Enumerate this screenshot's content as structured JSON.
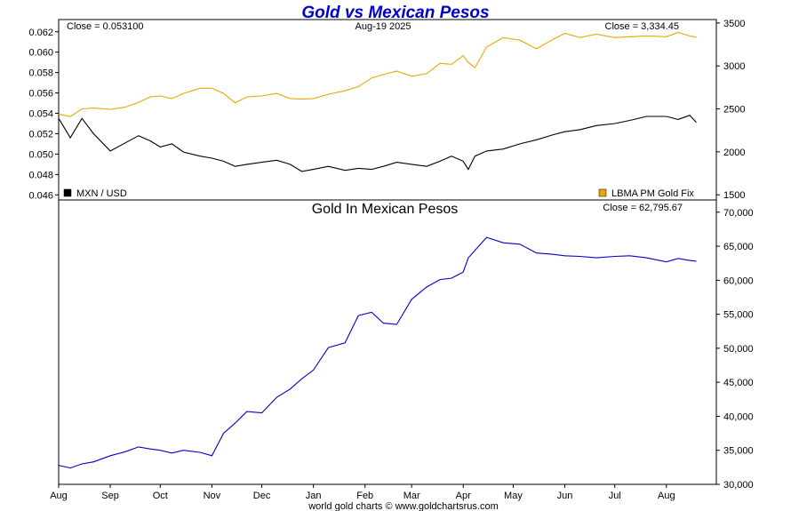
{
  "title": "Gold vs Mexican Pesos",
  "footer": "world gold charts © www.goldchartsrus.com",
  "colors": {
    "mxn": "#000000",
    "gold_usd": "#e8a800",
    "gold_mxn": "#0000cc",
    "title": "#0000cc"
  },
  "x_axis": {
    "type": "date",
    "range": [
      "2024-08-01",
      "2025-08-31"
    ],
    "tick_labels": [
      "Aug",
      "Sep",
      "Oct",
      "Nov",
      "Dec",
      "Jan",
      "Feb",
      "Mar",
      "Apr",
      "May",
      "Jun",
      "Jul",
      "Aug"
    ],
    "tick_dates": [
      "2024-08-01",
      "2024-09-01",
      "2024-10-01",
      "2024-11-01",
      "2024-12-01",
      "2025-01-01",
      "2025-02-01",
      "2025-03-01",
      "2025-04-01",
      "2025-05-01",
      "2025-06-01",
      "2025-07-01",
      "2025-08-01"
    ]
  },
  "chart_data": [
    {
      "type": "line",
      "panel": "top",
      "date_label": "Aug-19  2025",
      "grid": false,
      "left_axis": {
        "range": [
          0.0455,
          0.0632
        ],
        "ticks": [
          "0.046",
          "0.048",
          "0.050",
          "0.052",
          "0.054",
          "0.056",
          "0.058",
          "0.060",
          "0.062"
        ],
        "tick_values": [
          0.046,
          0.048,
          0.05,
          0.052,
          0.054,
          0.056,
          0.058,
          0.06,
          0.062
        ]
      },
      "right_axis": {
        "range": [
          1440,
          3540
        ],
        "ticks": [
          "1500",
          "2000",
          "2500",
          "3000",
          "3500"
        ],
        "tick_values": [
          1500,
          2000,
          2500,
          3000,
          3500
        ]
      },
      "series": [
        {
          "name": "MXN / USD",
          "axis": "left",
          "close_label": "Close = 0.053100",
          "x": [
            "2024-08-01",
            "2024-08-08",
            "2024-08-15",
            "2024-08-22",
            "2024-09-01",
            "2024-09-10",
            "2024-09-18",
            "2024-09-25",
            "2024-10-01",
            "2024-10-08",
            "2024-10-15",
            "2024-10-25",
            "2024-11-01",
            "2024-11-08",
            "2024-11-15",
            "2024-11-22",
            "2024-12-01",
            "2024-12-10",
            "2024-12-18",
            "2024-12-25",
            "2025-01-01",
            "2025-01-10",
            "2025-01-20",
            "2025-01-28",
            "2025-02-05",
            "2025-02-12",
            "2025-02-20",
            "2025-03-01",
            "2025-03-10",
            "2025-03-18",
            "2025-03-25",
            "2025-04-01",
            "2025-04-04",
            "2025-04-08",
            "2025-04-15",
            "2025-04-25",
            "2025-05-05",
            "2025-05-15",
            "2025-05-25",
            "2025-06-01",
            "2025-06-10",
            "2025-06-20",
            "2025-07-01",
            "2025-07-10",
            "2025-07-20",
            "2025-08-01",
            "2025-08-08",
            "2025-08-15",
            "2025-08-19"
          ],
          "y": [
            0.0535,
            0.0516,
            0.0535,
            0.052,
            0.0503,
            0.0511,
            0.0518,
            0.0513,
            0.0507,
            0.051,
            0.0502,
            0.0498,
            0.0496,
            0.0493,
            0.0488,
            0.049,
            0.0492,
            0.0494,
            0.049,
            0.0483,
            0.0485,
            0.0488,
            0.0484,
            0.0486,
            0.0485,
            0.0488,
            0.0492,
            0.049,
            0.0488,
            0.0493,
            0.0498,
            0.0493,
            0.0485,
            0.0498,
            0.0503,
            0.0505,
            0.051,
            0.0514,
            0.0519,
            0.0522,
            0.0524,
            0.0528,
            0.053,
            0.0533,
            0.0537,
            0.0537,
            0.0534,
            0.0538,
            0.0531
          ]
        },
        {
          "name": "LBMA PM Gold Fix",
          "axis": "right",
          "close_label": "Close = 3,334.45",
          "x": [
            "2024-08-01",
            "2024-08-08",
            "2024-08-15",
            "2024-08-22",
            "2024-09-01",
            "2024-09-10",
            "2024-09-18",
            "2024-09-25",
            "2024-10-01",
            "2024-10-08",
            "2024-10-15",
            "2024-10-25",
            "2024-11-01",
            "2024-11-08",
            "2024-11-15",
            "2024-11-22",
            "2024-12-01",
            "2024-12-10",
            "2024-12-18",
            "2024-12-25",
            "2025-01-01",
            "2025-01-10",
            "2025-01-20",
            "2025-01-28",
            "2025-02-05",
            "2025-02-12",
            "2025-02-20",
            "2025-03-01",
            "2025-03-10",
            "2025-03-18",
            "2025-03-25",
            "2025-04-01",
            "2025-04-04",
            "2025-04-08",
            "2025-04-15",
            "2025-04-25",
            "2025-05-05",
            "2025-05-15",
            "2025-05-25",
            "2025-06-01",
            "2025-06-10",
            "2025-06-20",
            "2025-07-01",
            "2025-07-10",
            "2025-07-20",
            "2025-08-01",
            "2025-08-08",
            "2025-08-15",
            "2025-08-19"
          ],
          "y": [
            2440,
            2410,
            2500,
            2510,
            2495,
            2520,
            2575,
            2640,
            2650,
            2620,
            2680,
            2740,
            2740,
            2680,
            2570,
            2640,
            2650,
            2680,
            2620,
            2615,
            2620,
            2670,
            2710,
            2760,
            2860,
            2900,
            2940,
            2880,
            2910,
            3030,
            3020,
            3120,
            3040,
            2980,
            3220,
            3330,
            3300,
            3200,
            3310,
            3380,
            3330,
            3370,
            3330,
            3340,
            3350,
            3340,
            3390,
            3350,
            3334
          ]
        }
      ]
    },
    {
      "type": "line",
      "panel": "bottom",
      "title": "Gold In Mexican Pesos",
      "grid": false,
      "right_axis": {
        "range": [
          30000,
          71800
        ],
        "ticks": [
          "30,000",
          "35,000",
          "40,000",
          "45,000",
          "50,000",
          "55,000",
          "60,000",
          "65,000",
          "70,000"
        ],
        "tick_values": [
          30000,
          35000,
          40000,
          45000,
          50000,
          55000,
          60000,
          65000,
          70000
        ]
      },
      "series": [
        {
          "close_label": "Close = 62,795.67",
          "x": [
            "2024-08-01",
            "2024-08-08",
            "2024-08-15",
            "2024-08-22",
            "2024-09-01",
            "2024-09-10",
            "2024-09-18",
            "2024-09-25",
            "2024-10-01",
            "2024-10-08",
            "2024-10-15",
            "2024-10-25",
            "2024-11-01",
            "2024-11-08",
            "2024-11-15",
            "2024-11-22",
            "2024-12-01",
            "2024-12-10",
            "2024-12-18",
            "2024-12-25",
            "2025-01-01",
            "2025-01-10",
            "2025-01-20",
            "2025-01-28",
            "2025-02-05",
            "2025-02-12",
            "2025-02-20",
            "2025-03-01",
            "2025-03-10",
            "2025-03-18",
            "2025-03-25",
            "2025-04-01",
            "2025-04-04",
            "2025-04-08",
            "2025-04-15",
            "2025-04-25",
            "2025-05-05",
            "2025-05-15",
            "2025-05-25",
            "2025-06-01",
            "2025-06-10",
            "2025-06-20",
            "2025-07-01",
            "2025-07-10",
            "2025-07-20",
            "2025-08-01",
            "2025-08-08",
            "2025-08-15",
            "2025-08-19"
          ],
          "y": [
            32800,
            32400,
            33000,
            33300,
            34200,
            34800,
            35500,
            35200,
            35000,
            34600,
            35000,
            34700,
            34200,
            37500,
            39000,
            40700,
            40500,
            42800,
            44000,
            45500,
            46800,
            50100,
            50800,
            54800,
            55300,
            53700,
            53500,
            57200,
            59000,
            60100,
            60300,
            61200,
            63300,
            64400,
            66300,
            65500,
            65300,
            64000,
            63800,
            63600,
            63500,
            63300,
            63500,
            63600,
            63300,
            62700,
            63200,
            62900,
            62796
          ]
        }
      ]
    }
  ]
}
